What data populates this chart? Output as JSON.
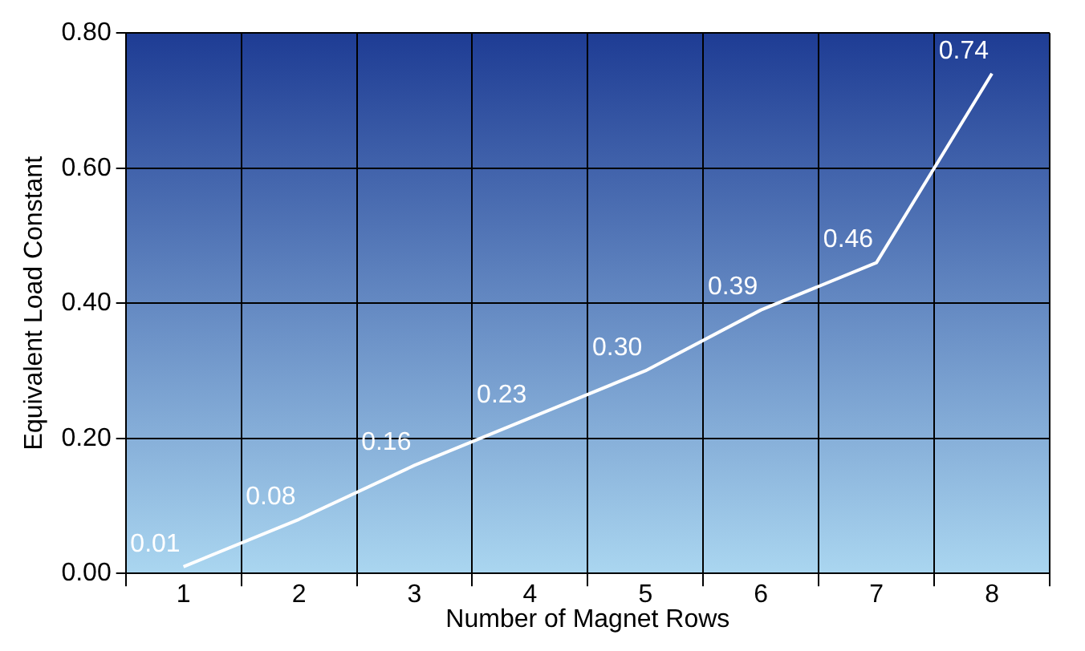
{
  "chart_data": {
    "type": "line",
    "xlabel": "Number of Magnet Rows",
    "ylabel": "Equivalent Load Constant",
    "categories": [
      "1",
      "2",
      "3",
      "4",
      "5",
      "6",
      "7",
      "8"
    ],
    "series": [
      {
        "color": "#ffffff",
        "values": [
          0.01,
          0.08,
          0.16,
          0.23,
          0.3,
          0.39,
          0.46,
          0.74
        ],
        "value_labels": [
          "0.01",
          "0.08",
          "0.16",
          "0.23",
          "0.30",
          "0.39",
          "0.46",
          "0.74"
        ]
      }
    ],
    "ylim": [
      0,
      0.8
    ],
    "yticks": [
      {
        "value": 0,
        "label": "0.00"
      },
      {
        "value": 0.2,
        "label": "0.20"
      },
      {
        "value": 0.4,
        "label": "0.40"
      },
      {
        "value": 0.6,
        "label": "0.60"
      },
      {
        "value": 0.8,
        "label": "0.80"
      }
    ],
    "grid": true,
    "legend": false,
    "marker": "none",
    "line_style": "solid"
  }
}
